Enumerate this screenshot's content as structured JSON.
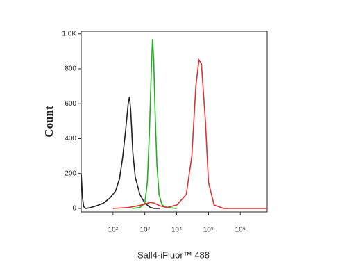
{
  "chart_data": {
    "type": "line",
    "xscale": "log",
    "xlabel": "Sall4-iFluor™ 488",
    "ylabel": "Count",
    "xlim": [
      10,
      7000000
    ],
    "ylim": [
      -20,
      1015
    ],
    "xticks": [
      {
        "value": 100,
        "label": "10²"
      },
      {
        "value": 1000,
        "label": "10³"
      },
      {
        "value": 10000,
        "label": "10⁴"
      },
      {
        "value": 100000,
        "label": "10⁵"
      },
      {
        "value": 1000000,
        "label": "10⁶"
      }
    ],
    "yticks": [
      0,
      200,
      400,
      600,
      800,
      {
        "value": 1000,
        "label": "1.0K"
      }
    ],
    "series": [
      {
        "color": "#222222",
        "x": [
          10,
          11,
          12,
          14,
          20,
          30,
          50,
          80,
          120,
          160,
          200,
          250,
          300,
          330,
          360,
          420,
          500,
          700,
          1000,
          1500,
          2000,
          3000
        ],
        "values": [
          200,
          60,
          10,
          0,
          5,
          15,
          30,
          60,
          100,
          170,
          290,
          450,
          600,
          640,
          560,
          320,
          180,
          80,
          30,
          5,
          0,
          0
        ]
      },
      {
        "color": "#1fb01f",
        "x": [
          400,
          700,
          1000,
          1200,
          1400,
          1600,
          1750,
          1900,
          2100,
          2400,
          2800,
          3500,
          5000,
          10000
        ],
        "values": [
          0,
          5,
          30,
          150,
          450,
          800,
          970,
          850,
          550,
          250,
          80,
          20,
          5,
          0
        ]
      },
      {
        "color": "#e03030",
        "x": [
          100,
          300,
          600,
          1000,
          1500,
          2000,
          3000,
          5000,
          10000,
          20000,
          30000,
          40000,
          50000,
          60000,
          80000,
          100000,
          150000,
          300000,
          7000000
        ],
        "values": [
          0,
          5,
          15,
          25,
          35,
          30,
          15,
          5,
          20,
          80,
          300,
          700,
          850,
          830,
          500,
          150,
          20,
          0,
          0
        ]
      }
    ]
  }
}
